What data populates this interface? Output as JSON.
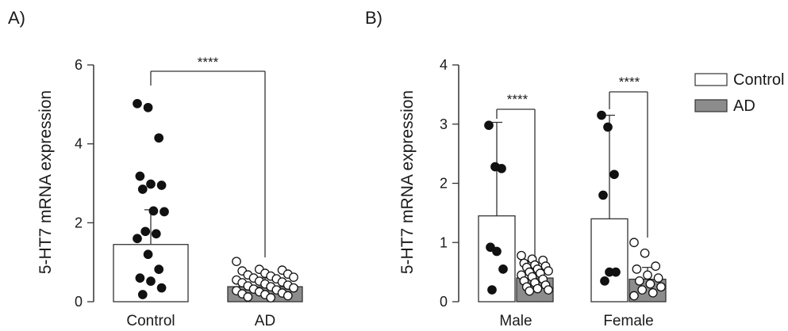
{
  "colors": {
    "control_fill": "#ffffff",
    "ad_fill": "#8c8c8c",
    "stroke": "#333333",
    "dot": "#111111"
  },
  "chart_data": [
    {
      "panel": "A)",
      "type": "bar",
      "ylabel": "5-HT7 mRNA expression",
      "ylim": [
        0,
        6
      ],
      "yticks": [
        "0",
        "2",
        "4",
        "6"
      ],
      "categories": [
        "Control",
        "AD"
      ],
      "values": [
        1.45,
        0.38
      ],
      "sd": [
        0.88,
        0.22
      ],
      "significance": "****",
      "points": [
        [
          5.02,
          4.92,
          4.15,
          3.18,
          2.98,
          2.95,
          2.85,
          2.3,
          2.28,
          1.78,
          1.72,
          1.6,
          1.2,
          0.82,
          0.6,
          0.52,
          0.35,
          0.18
        ],
        [
          1.02,
          0.82,
          0.8,
          0.78,
          0.72,
          0.7,
          0.68,
          0.65,
          0.62,
          0.6,
          0.58,
          0.55,
          0.52,
          0.5,
          0.48,
          0.45,
          0.42,
          0.4,
          0.38,
          0.35,
          0.32,
          0.3,
          0.28,
          0.25,
          0.22,
          0.2,
          0.18,
          0.15,
          0.12,
          0.1
        ]
      ],
      "grid": false
    },
    {
      "panel": "B)",
      "type": "bar",
      "ylabel": "5-HT7 mRNA expression",
      "ylim": [
        0,
        4
      ],
      "yticks": [
        "0",
        "1",
        "2",
        "3",
        "4"
      ],
      "categories": [
        "Male",
        "Female"
      ],
      "series": [
        {
          "name": "Control",
          "values": [
            1.45,
            1.4
          ],
          "sd": [
            1.58,
            1.75
          ]
        },
        {
          "name": "AD",
          "values": [
            0.4,
            0.38
          ],
          "sd": [
            0.2,
            0.2
          ]
        }
      ],
      "significance": [
        "****",
        "****"
      ],
      "points": {
        "Control": [
          [
            2.98,
            2.28,
            2.25,
            0.92,
            0.85,
            0.55,
            0.2
          ],
          [
            3.15,
            2.95,
            2.15,
            1.8,
            0.5,
            0.5,
            0.35
          ]
        ],
        "AD": [
          [
            0.78,
            0.72,
            0.7,
            0.65,
            0.62,
            0.6,
            0.58,
            0.55,
            0.52,
            0.5,
            0.48,
            0.45,
            0.42,
            0.38,
            0.35,
            0.32,
            0.28,
            0.25,
            0.22,
            0.2,
            0.18
          ],
          [
            1.0,
            0.82,
            0.6,
            0.55,
            0.45,
            0.4,
            0.35,
            0.3,
            0.25,
            0.2,
            0.15,
            0.1
          ]
        ]
      },
      "legend": {
        "position": "top-right",
        "entries": [
          "Control",
          "AD"
        ]
      },
      "grid": false
    }
  ]
}
